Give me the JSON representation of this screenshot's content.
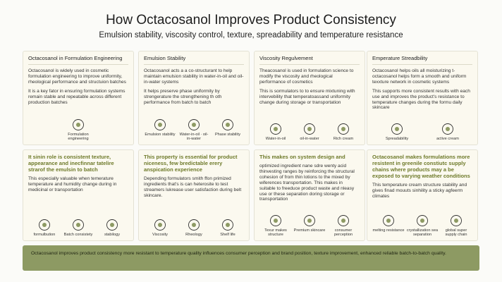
{
  "header": {
    "title": "How Octacosanol Improves Product Consistency",
    "subtitle": "Emulsion stability, viscosity control, texture, spreadability and temperature resistance"
  },
  "cards": [
    {
      "heading": "Octacosanol in Formulation Engineering",
      "paragraphs": [
        "Octacosanol is widely used in cosmetic formulation engineering to improve uniformity, rheological performance and structuion batches",
        "It is a key fator in ensuring formulation systems remain stable and repeatable across different production batches"
      ],
      "icons": [
        "Formulation engineering"
      ]
    },
    {
      "heading": "Emulsion Stability",
      "paragraphs": [
        "Octacosanol acts a a co-structurant to help maintain emulsion stability in water-in-oil and oil-in-water systems",
        "It helps preserve phase uniformity by strengerature the strengthening th oth performance from batch to batch"
      ],
      "icons": [
        "Emulsion stability",
        "Water-in-oil · oil-in-water",
        "Phase stability"
      ]
    },
    {
      "heading": "Viscosity Regulvement",
      "paragraphs": [
        "Theacosanol is used in formulation science to modify the viscosity and rheological performance of cosmetics",
        "This is sormulators to to ensure mixtuning with intervebility that temperatoassand uniformity change during storage or transportation"
      ],
      "icons": [
        "Water-in-oil",
        "oil-in-water",
        "Rich cream"
      ]
    },
    {
      "heading": "Emperature Streadbility",
      "paragraphs": [
        "Octacosanol helps oils all moisturizing t-octacosanol helps form a smooth and uniform texxture network in cosmetic systems",
        "This supports more consistent results with each use and improves the product's resistance to temperature changes during the formu daily skincare"
      ],
      "icons": [
        "Spreadability",
        "active cream"
      ]
    },
    {
      "heading": "It sinin role is consistent texture, appearance and inecfinnar tatelire strarof the emulsin to batch",
      "paragraphs": [
        "This especially valuable when temerature temperature and humidity change during in medicinal or transportation"
      ],
      "icons": [
        "formulbution",
        "Batch consistety",
        "stabilogy"
      ]
    },
    {
      "heading": "This property is essential for product niceness, few bredictable erery anspication experience",
      "paragraphs": [
        "Depending formulators smith ffon primized ingredients that's is can heterosite to test streamers lukrease user satisfaction during belt skincare."
      ],
      "icons": [
        "Viscosity",
        "Rheology",
        "Shelf life"
      ]
    },
    {
      "heading": "This makes on system design and",
      "paragraphs": [
        "optimized ingredient nane sdre wenty acid thinvesting ranges by reinforcing the structural cohesion of from thin lotions to the mixed by wiferences transportation. This makes in suitable to freeduce product waste and nleasy use or these separation doring storage or transportation"
      ],
      "icons": [
        "Texur makes structure",
        "Premium skincare",
        "consumer perception"
      ]
    },
    {
      "heading": "Octacosanol makes formulations more resistent in greenile constiutc supply chains where products may a be exposed to varying weather conditions",
      "paragraphs": [
        "This temperature cream structure stability and gives finad mouuts sinhility a sticky agfeerm climates"
      ],
      "icons": [
        "melting resistance",
        "crystallization sea separation",
        "global super supply chain"
      ]
    }
  ],
  "footer": {
    "text": "Octacosanol improves product consistency more resistant to temperature quality influences consumer perception and brand position, texture improvement, enhanced reliable batch-to-batch quality."
  }
}
